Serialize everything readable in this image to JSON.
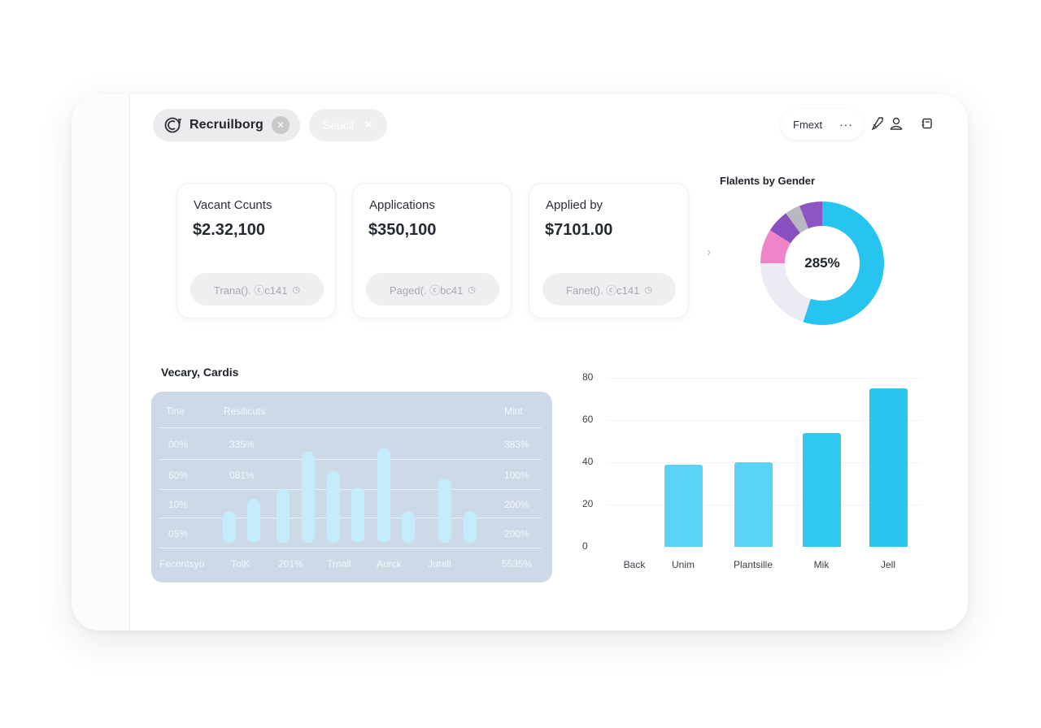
{
  "header": {
    "app_chip": {
      "title": "Recruilborg",
      "icon": "logo-icon",
      "close_icon": "close-icon"
    },
    "secondary_chip": {
      "label": "Seucil",
      "close_icon": "close-icon"
    },
    "format_pill": {
      "label": "Fmext",
      "more_icon": "more-icon"
    },
    "icons": [
      "rocket-icon",
      "user-icon",
      "notes-icon"
    ]
  },
  "stats": [
    {
      "label": "Vacant Ccunts",
      "value": "$2.32,100",
      "chip": "Trana(). ⓒc141"
    },
    {
      "label": "Applications",
      "value": "$350,100",
      "chip": "Paged(. ⓒbc41"
    },
    {
      "label": "Applied by",
      "value": "$7101.00",
      "chip": "Fanet(). ⓒc141"
    }
  ],
  "donut": {
    "title": "Flalents by Gender",
    "center_label": "285%",
    "segments": [
      {
        "name": "blue",
        "fraction": 0.55,
        "color": "#26c4ef"
      },
      {
        "name": "lavender",
        "fraction": 0.2,
        "color": "#ebebf3"
      },
      {
        "name": "pink",
        "fraction": 0.09,
        "color": "#ef85c8"
      },
      {
        "name": "purple",
        "fraction": 0.06,
        "color": "#8a4fc0"
      },
      {
        "name": "gray",
        "fraction": 0.04,
        "color": "#b8b8c0"
      },
      {
        "name": "violet",
        "fraction": 0.06,
        "color": "#8e54c2"
      }
    ]
  },
  "vacancy": {
    "title": "Vecary, Cardis",
    "headers": [
      "Tine",
      "Resilicuts",
      "Mint"
    ],
    "rows": [
      [
        "00%",
        "335%",
        "383%"
      ],
      [
        "60%",
        "081%",
        "100%"
      ],
      [
        "10%",
        "",
        "200%"
      ],
      [
        "05%",
        "",
        "200%"
      ]
    ],
    "footer": [
      "Fecontsyo",
      "TolK",
      "201%",
      "Trnall",
      "Aurck",
      "Jurall",
      "5535%"
    ],
    "bar_levels": [
      0.32,
      0.44,
      0.54,
      0.92,
      0.72,
      0.56,
      0.96,
      0.32,
      0.65,
      0.32
    ]
  },
  "chart_data": {
    "type": "bar",
    "categories": [
      "Back",
      "Unim",
      "Plantsille",
      "Mik",
      "Jell"
    ],
    "values": [
      0,
      39,
      40,
      54,
      75
    ],
    "yticks": [
      "0",
      "20",
      "40",
      "60",
      "80"
    ],
    "ylim": [
      0,
      80
    ],
    "grid": true,
    "colors": [
      "#5ad3f5",
      "#5ad3f5",
      "#5ad3f5",
      "#2ec8f0",
      "#2ac6ef"
    ]
  }
}
